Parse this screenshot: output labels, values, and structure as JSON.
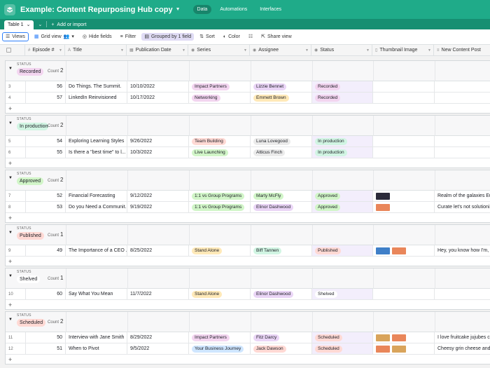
{
  "app": {
    "title": "Example: Content Repurposing Hub copy",
    "nav": [
      "Data",
      "Automations",
      "Interfaces"
    ]
  },
  "tables": {
    "tab": "Table 1",
    "add": "Add or import"
  },
  "toolbar": {
    "views": "Views",
    "grid_view": "Grid view",
    "hide_fields": "Hide fields",
    "filter": "Filter",
    "grouped": "Grouped by 1 field",
    "sort": "Sort",
    "color": "Color",
    "share": "Share view"
  },
  "columns": [
    "Episode #",
    "Title",
    "Publication Date",
    "Series",
    "Assignee",
    "Status",
    "Thumbnail Image",
    "New Content Post"
  ],
  "group_label": "STATUS",
  "count_label": "Count",
  "colors": {
    "Recorded": "#f3d5f0",
    "In production": "#d1f5e3",
    "Approved": "#d1f5c8",
    "Published": "#ffd9d4",
    "Shelved": "#ffffff",
    "Scheduled": "#ffd9d4",
    "Impact Partners": "#f3d5f0",
    "Networking": "#f3d5f0",
    "Team Building": "#ffd9d4",
    "Live Launching": "#d1f5c8",
    "1:1 vs Group Programs": "#d1f5c8",
    "Stand Alone": "#ffe9b8",
    "Your Business Journey": "#cfe6ff",
    "Lizzie Bennet": "#ead5f6",
    "Emmett Brown": "#ffe9b8",
    "Luna Lovegood": "#ebebeb",
    "Atticus Finch": "#ebebeb",
    "Marty McFly": "#d1f5c8",
    "Elinor Dashwood": "#ead5f6",
    "Biff Tannen": "#d1f5e3",
    "Fitz Darcy": "#ead5f6",
    "Jack Dawson": "#ffd9d4"
  },
  "groups": [
    {
      "status": "Recorded",
      "count": "2",
      "rows": [
        {
          "n": "3",
          "ep": "56",
          "title": "Do Things. The Summit.",
          "date": "10/10/2022",
          "series": "Impact Partners",
          "assignee": "Lizzie Bennet",
          "status": "Recorded",
          "thumbs": [],
          "post": ""
        },
        {
          "n": "4",
          "ep": "57",
          "title": "LinkedIn Reinvisioned",
          "date": "10/17/2022",
          "series": "Networking",
          "assignee": "Emmett Brown",
          "status": "Recorded",
          "thumbs": [],
          "post": ""
        }
      ]
    },
    {
      "status": "In production",
      "count": "2",
      "rows": [
        {
          "n": "5",
          "ep": "54",
          "title": "Exploring Learning Styles",
          "date": "9/26/2022",
          "series": "Team Building",
          "assignee": "Luna Lovegood",
          "status": "In production",
          "thumbs": [],
          "post": ""
        },
        {
          "n": "6",
          "ep": "55",
          "title": "Is there a \"best time\" to l...",
          "date": "10/3/2022",
          "series": "Live Launching",
          "assignee": "Atticus Finch",
          "status": "In production",
          "thumbs": [],
          "post": ""
        }
      ]
    },
    {
      "status": "Approved",
      "count": "2",
      "rows": [
        {
          "n": "7",
          "ep": "52",
          "title": "Financial Forecasting",
          "date": "9/12/2022",
          "series": "1:1 vs Group Programs",
          "assignee": "Marty McFly",
          "status": "Approved",
          "thumbs": [
            "dark"
          ],
          "post": "Realm of the galaxies Euc..."
        },
        {
          "n": "8",
          "ep": "53",
          "title": "Do you Need a Communit...",
          "date": "9/19/2022",
          "series": "1:1 vs Group Programs",
          "assignee": "Elinor Dashwood",
          "status": "Approved",
          "thumbs": [
            "orange"
          ],
          "post": "Curate let's not solutioniz..."
        }
      ]
    },
    {
      "status": "Published",
      "count": "1",
      "rows": [
        {
          "n": "9",
          "ep": "49",
          "title": "The Importance of a CEO ...",
          "date": "8/25/2022",
          "series": "Stand Alone",
          "assignee": "Biff Tannen",
          "status": "Published",
          "thumbs": [
            "blue",
            "orange"
          ],
          "post": "Hey, you know how I'm, li..."
        }
      ]
    },
    {
      "status": "Shelved",
      "count": "1",
      "rows": [
        {
          "n": "10",
          "ep": "60",
          "title": "Say What You Mean",
          "date": "11/7/2022",
          "series": "Stand Alone",
          "assignee": "Elinor Dashwood",
          "status": "Shelved",
          "thumbs": [],
          "post": ""
        }
      ]
    },
    {
      "status": "Scheduled",
      "count": "2",
      "rows": [
        {
          "n": "11",
          "ep": "50",
          "title": "Interview with Jane Smith",
          "date": "8/29/2022",
          "series": "Impact Partners",
          "assignee": "Fitz Darcy",
          "status": "Scheduled",
          "thumbs": [
            "tan",
            "orange"
          ],
          "post": "I love fruitcake jujubes ca..."
        },
        {
          "n": "12",
          "ep": "51",
          "title": "When to Pivot",
          "date": "9/5/2022",
          "series": "Your Business Journey",
          "assignee": "Jack Dawson",
          "status": "Scheduled",
          "thumbs": [
            "orange",
            "tan"
          ],
          "post": "Cheesy grin cheese and ..."
        }
      ]
    }
  ]
}
